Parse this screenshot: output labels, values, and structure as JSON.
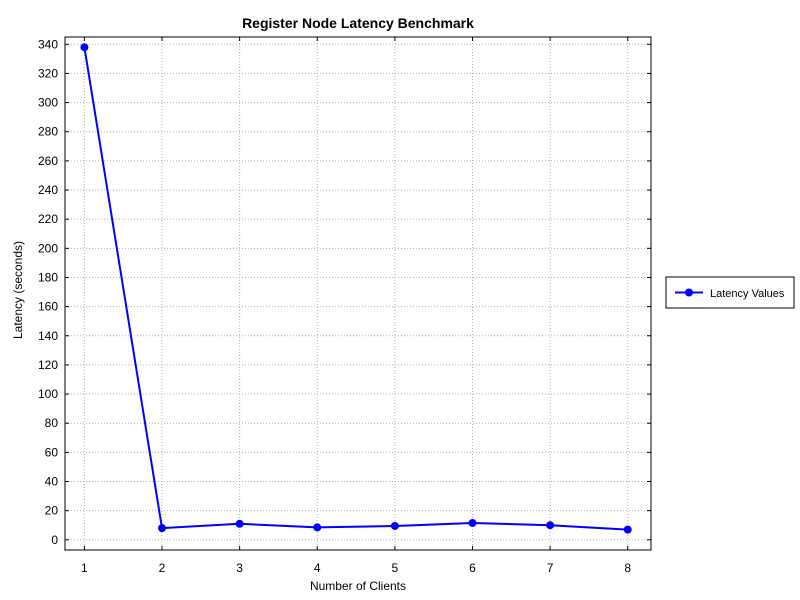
{
  "chart_data": {
    "type": "line",
    "title": "Register Node Latency Benchmark",
    "xlabel": "Number of Clients",
    "ylabel": "Latency (seconds)",
    "x": [
      1,
      2,
      3,
      4,
      5,
      6,
      7,
      8
    ],
    "xlim": [
      0.75,
      8.3
    ],
    "ylim": [
      -7,
      345
    ],
    "yticks": [
      0,
      20,
      40,
      60,
      80,
      100,
      120,
      140,
      160,
      180,
      200,
      220,
      240,
      260,
      280,
      300,
      320,
      340
    ],
    "xticks": [
      1,
      2,
      3,
      4,
      5,
      6,
      7,
      8
    ],
    "grid": true,
    "legend_position": "right",
    "series": [
      {
        "name": "Latency Values",
        "color": "#0000ff",
        "marker": "circle",
        "values": [
          338,
          8,
          11,
          8.5,
          9.5,
          11.5,
          10,
          7
        ]
      }
    ]
  }
}
